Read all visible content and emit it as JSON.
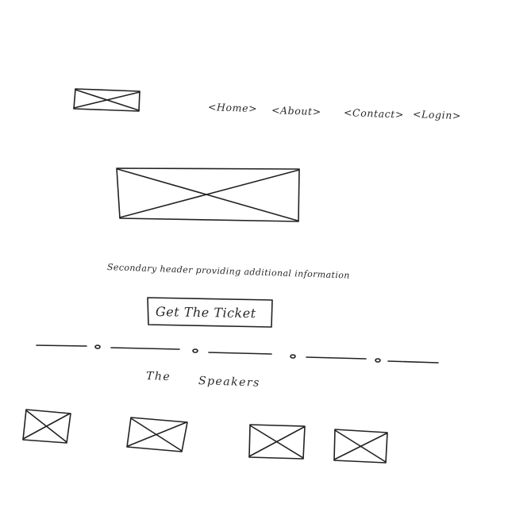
{
  "nav": {
    "items": [
      {
        "label": "<Home>"
      },
      {
        "label": "<About>"
      },
      {
        "label": "<Contact>"
      },
      {
        "label": "<Login>"
      }
    ]
  },
  "hero": {
    "subheader": "Secondary header providing additional information",
    "cta_label": "Get The Ticket"
  },
  "speakers": {
    "title_word_1": "The",
    "title_word_2": "Speakers"
  },
  "colors": {
    "ink": "#222222",
    "paper": "#ffffff"
  }
}
